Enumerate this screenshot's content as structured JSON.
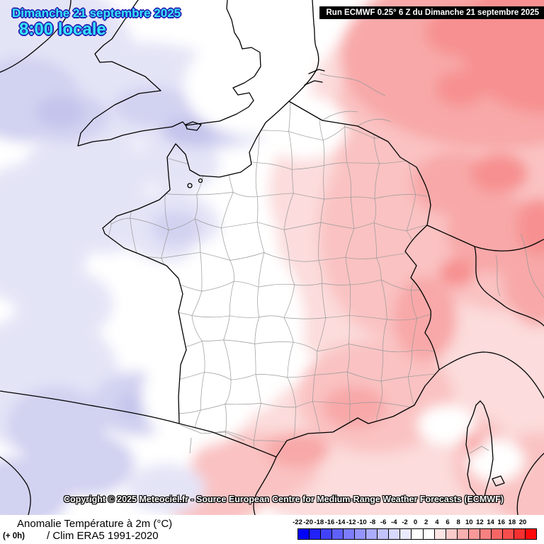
{
  "overlay": {
    "date_line": "Dimanche 21 septembre 2025",
    "time_line": "8:00 locale",
    "run_line": "Run ECMWF 0.25° 6 Z du Dimanche 21 septembre 2025",
    "copyright": "Copyright © 2025 Meteociel.fr - Source European Centre for Medium-Range Weather Forecasts (ECMWF)"
  },
  "footer": {
    "title": "Anomalie Température à 2m (°C)",
    "offset": "(+ 0h)",
    "climatology": "/ Clim ERA5 1991-2020"
  },
  "scale": {
    "unit": "°C",
    "tick_labels": [
      "-22",
      "-20",
      "-18",
      "-16",
      "-14",
      "-12",
      "-10",
      "-8",
      "-6",
      "-4",
      "-2",
      "0",
      "2",
      "4",
      "6",
      "8",
      "10",
      "12",
      "14",
      "16",
      "18",
      "20"
    ],
    "cell_colors": [
      "#0202f8",
      "#2222f8",
      "#4242fa",
      "#6060fa",
      "#7c7cfc",
      "#9494fc",
      "#acacfe",
      "#c2c2fe",
      "#d8d8fe",
      "#eaeaff",
      "#ffffff",
      "#ffffff",
      "#fde4e4",
      "#fbcaca",
      "#f9b0b0",
      "#f89898",
      "#f78080",
      "#f66666",
      "#f54c4c",
      "#f43030",
      "#ff0a0a"
    ]
  },
  "colors": {
    "date_text": "#35e6fc",
    "date_outline": "#2525b4",
    "run_bar_bg": "#000000",
    "run_bar_text": "#ffffff",
    "copyright_text": "#ffffff",
    "coastline": "#000000",
    "department_border": "#999999",
    "sea_cool_tint": "#e4e4f7",
    "land_warm_tint": "#f8a8a8"
  }
}
